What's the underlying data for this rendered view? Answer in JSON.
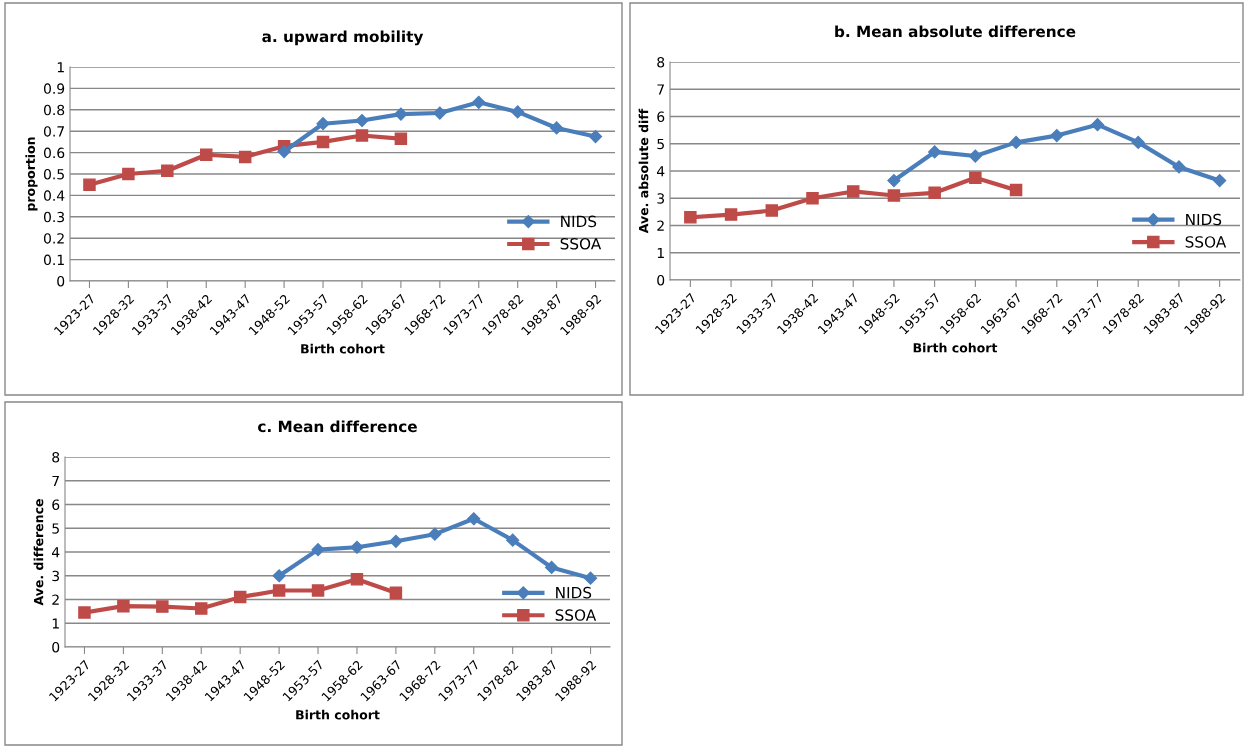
{
  "chart_data": [
    {
      "type": "line",
      "title": "a. upward mobility",
      "xlabel": "Birth cohort",
      "ylabel": "proportion",
      "categories": [
        "1923-27",
        "1928-32",
        "1933-37",
        "1938-42",
        "1943-47",
        "1948-52",
        "1953-57",
        "1958-62",
        "1963-67",
        "1968-72",
        "1973-77",
        "1978-82",
        "1983-87",
        "1988-92"
      ],
      "series": [
        {
          "name": "NIDS",
          "color": "#4a7ebb",
          "marker": "diamond",
          "values": [
            null,
            null,
            null,
            null,
            null,
            0.605,
            0.735,
            0.75,
            0.78,
            0.785,
            0.835,
            0.79,
            0.715,
            0.675
          ]
        },
        {
          "name": "SSOA",
          "color": "#be4b48",
          "marker": "square",
          "values": [
            0.45,
            0.5,
            0.515,
            0.59,
            0.58,
            0.63,
            0.65,
            0.68,
            0.665,
            null,
            null,
            null,
            null,
            null
          ]
        }
      ],
      "ylim": [
        0,
        1
      ],
      "yticks": [
        0,
        0.1,
        0.2,
        0.3,
        0.4,
        0.5,
        0.6,
        0.7,
        0.8,
        0.9,
        1
      ],
      "grid": "y",
      "legend": "right"
    },
    {
      "type": "line",
      "title": "b. Mean absolute difference",
      "xlabel": "Birth cohort",
      "ylabel": "Ave. absolute diff",
      "categories": [
        "1923-27",
        "1928-32",
        "1933-37",
        "1938-42",
        "1943-47",
        "1948-52",
        "1953-57",
        "1958-62",
        "1963-67",
        "1968-72",
        "1973-77",
        "1978-82",
        "1983-87",
        "1988-92"
      ],
      "series": [
        {
          "name": "NIDS",
          "color": "#4a7ebb",
          "marker": "diamond",
          "values": [
            null,
            null,
            null,
            null,
            null,
            3.65,
            4.7,
            4.55,
            5.05,
            5.3,
            5.7,
            5.05,
            4.15,
            3.65
          ]
        },
        {
          "name": "SSOA",
          "color": "#be4b48",
          "marker": "square",
          "values": [
            2.3,
            2.4,
            2.55,
            3.0,
            3.25,
            3.1,
            3.2,
            3.75,
            3.3,
            null,
            null,
            null,
            null,
            null
          ]
        }
      ],
      "ylim": [
        0,
        8
      ],
      "yticks": [
        0,
        1,
        2,
        3,
        4,
        5,
        6,
        7,
        8
      ],
      "grid": "y",
      "legend": "right"
    },
    {
      "type": "line",
      "title": "c. Mean difference",
      "xlabel": "Birth cohort",
      "ylabel": "Ave. difference",
      "categories": [
        "1923-27",
        "1928-32",
        "1933-37",
        "1938-42",
        "1943-47",
        "1948-52",
        "1953-57",
        "1958-62",
        "1963-67",
        "1968-72",
        "1973-77",
        "1978-82",
        "1983-87",
        "1988-92"
      ],
      "series": [
        {
          "name": "NIDS",
          "color": "#4a7ebb",
          "marker": "diamond",
          "values": [
            null,
            null,
            null,
            null,
            null,
            3.0,
            4.1,
            4.2,
            4.45,
            4.75,
            5.4,
            4.5,
            3.35,
            2.9
          ]
        },
        {
          "name": "SSOA",
          "color": "#be4b48",
          "marker": "square",
          "values": [
            1.45,
            1.72,
            1.7,
            1.62,
            2.1,
            2.38,
            2.38,
            2.85,
            2.28,
            null,
            null,
            null,
            null,
            null
          ]
        }
      ],
      "ylim": [
        0,
        8
      ],
      "yticks": [
        0,
        1,
        2,
        3,
        4,
        5,
        6,
        7,
        8
      ],
      "grid": "y",
      "legend": "right"
    }
  ]
}
